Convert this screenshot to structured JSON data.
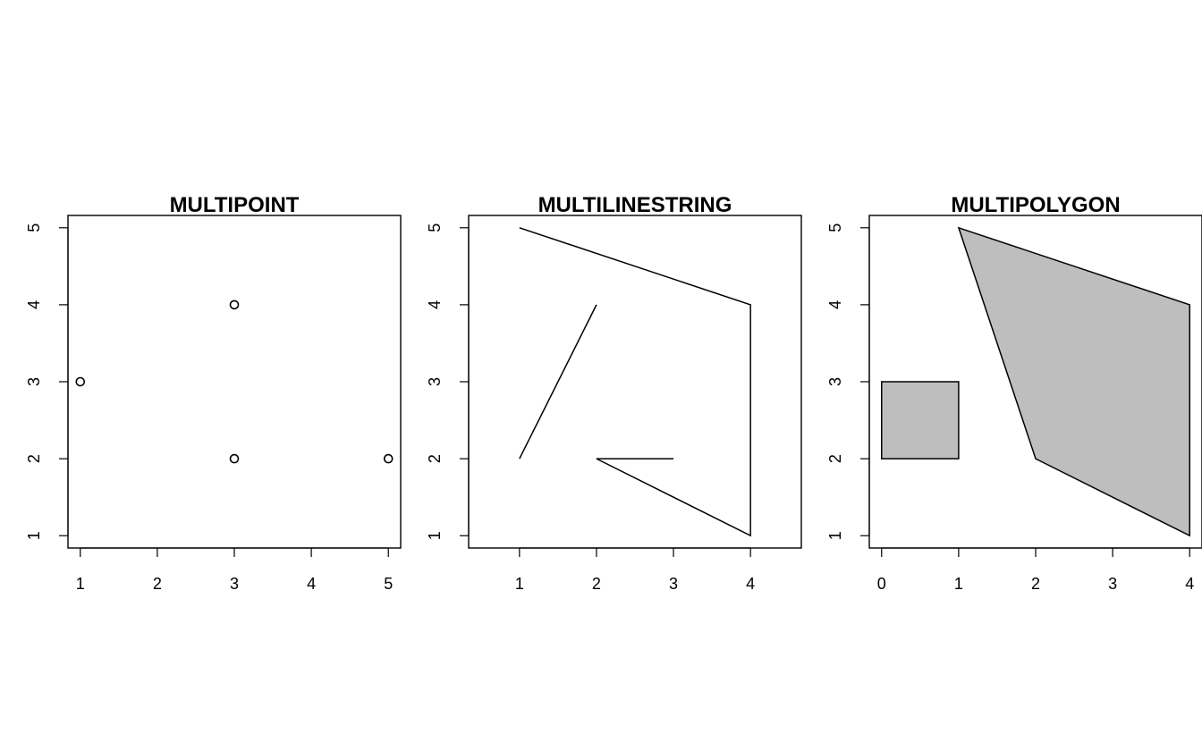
{
  "chart_data": [
    {
      "type": "scatter",
      "title": "MULTIPOINT",
      "xlabel": "",
      "ylabel": "",
      "xlim": [
        0.84,
        5.16
      ],
      "ylim": [
        0.84,
        5.16
      ],
      "x_ticks": [
        1,
        2,
        3,
        4,
        5
      ],
      "y_ticks": [
        1,
        2,
        3,
        4,
        5
      ],
      "points": [
        [
          1,
          3
        ],
        [
          3,
          4
        ],
        [
          3,
          2
        ],
        [
          5,
          2
        ]
      ],
      "marker": "open-circle",
      "grid": false
    },
    {
      "type": "line",
      "title": "MULTILINESTRING",
      "xlabel": "",
      "ylabel": "",
      "xlim": [
        0.34,
        4.66
      ],
      "ylim": [
        0.84,
        5.16
      ],
      "x_ticks": [
        1,
        2,
        3,
        4
      ],
      "y_ticks": [
        1,
        2,
        3,
        4,
        5
      ],
      "lines": [
        [
          [
            1,
            5
          ],
          [
            4,
            4
          ],
          [
            4,
            1
          ],
          [
            2,
            2
          ],
          [
            3,
            2
          ]
        ],
        [
          [
            1,
            2
          ],
          [
            2,
            4
          ]
        ]
      ],
      "grid": false
    },
    {
      "type": "area",
      "title": "MULTIPOLYGON",
      "xlabel": "",
      "ylabel": "",
      "xlim": [
        -0.16,
        4.16
      ],
      "ylim": [
        0.84,
        5.16
      ],
      "x_ticks": [
        0,
        1,
        2,
        3,
        4
      ],
      "y_ticks": [
        1,
        2,
        3,
        4,
        5
      ],
      "polygons": [
        [
          [
            1,
            5
          ],
          [
            4,
            4
          ],
          [
            4,
            1
          ],
          [
            2,
            2
          ],
          [
            1,
            5
          ]
        ],
        [
          [
            0,
            2
          ],
          [
            1,
            2
          ],
          [
            1,
            3
          ],
          [
            0,
            3
          ],
          [
            0,
            2
          ]
        ]
      ],
      "fill_color": "#bebebe",
      "stroke_color": "#000000",
      "grid": false
    }
  ]
}
